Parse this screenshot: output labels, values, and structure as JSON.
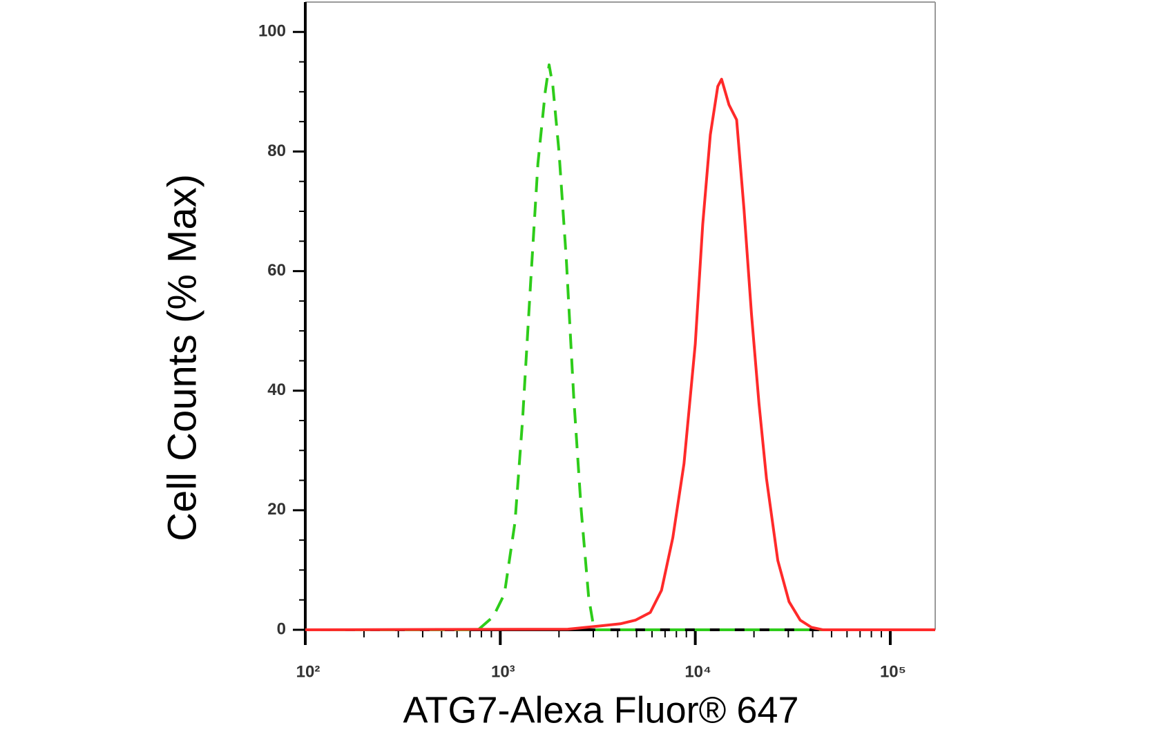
{
  "chart_data": {
    "type": "line",
    "x_label": "ATG7-Alexa Fluor® 647",
    "y_label": "Cell Counts (% Max)",
    "xscale": "log",
    "xlim": [
      100,
      170000
    ],
    "xticks": [
      {
        "value": 100,
        "label": "10²"
      },
      {
        "value": 1000,
        "label": "10³"
      },
      {
        "value": 10000,
        "label": "10⁴"
      },
      {
        "value": 100000,
        "label": "10⁵"
      }
    ],
    "xminorticks": [
      200,
      300,
      400,
      500,
      600,
      700,
      800,
      900,
      2000,
      3000,
      4000,
      5000,
      6000,
      7000,
      8000,
      9000,
      20000,
      30000,
      40000,
      50000,
      60000,
      70000,
      80000,
      90000
    ],
    "ylim": [
      0,
      105
    ],
    "yticks": [
      0,
      20,
      40,
      60,
      80,
      100
    ],
    "yminorticks": [
      5,
      10,
      15,
      25,
      30,
      35,
      45,
      50,
      55,
      65,
      70,
      75,
      85,
      90,
      95
    ],
    "series": [
      {
        "color": "#2ecc1a",
        "linestyle": "dashed",
        "x": [
          100,
          770,
          920,
          1050,
          1190,
          1300,
          1430,
          1560,
          1700,
          1780,
          1860,
          2000,
          2180,
          2380,
          2600,
          2840,
          3030,
          170000
        ],
        "values": [
          0,
          0,
          2.2,
          6,
          18,
          35,
          58,
          78,
          90,
          94.5,
          91,
          80,
          62,
          39,
          20,
          5.4,
          0,
          0
        ]
      },
      {
        "color": "#ff2a2a",
        "linestyle": "solid",
        "x": [
          100,
          2220,
          3160,
          4130,
          4930,
          5880,
          6710,
          7670,
          8750,
          10000,
          10920,
          11940,
          13040,
          13640,
          14900,
          16290,
          17780,
          19420,
          21230,
          23180,
          26490,
          30270,
          34540,
          39450,
          45060,
          170000
        ],
        "values": [
          0,
          0.1,
          0.6,
          1,
          1.6,
          2.9,
          6.6,
          15.4,
          27.8,
          47.8,
          67.8,
          82.8,
          90.9,
          92.1,
          87.8,
          85.3,
          70.3,
          52.8,
          37.8,
          25.3,
          11.6,
          4.7,
          1.6,
          0.4,
          0,
          0
        ]
      }
    ]
  }
}
